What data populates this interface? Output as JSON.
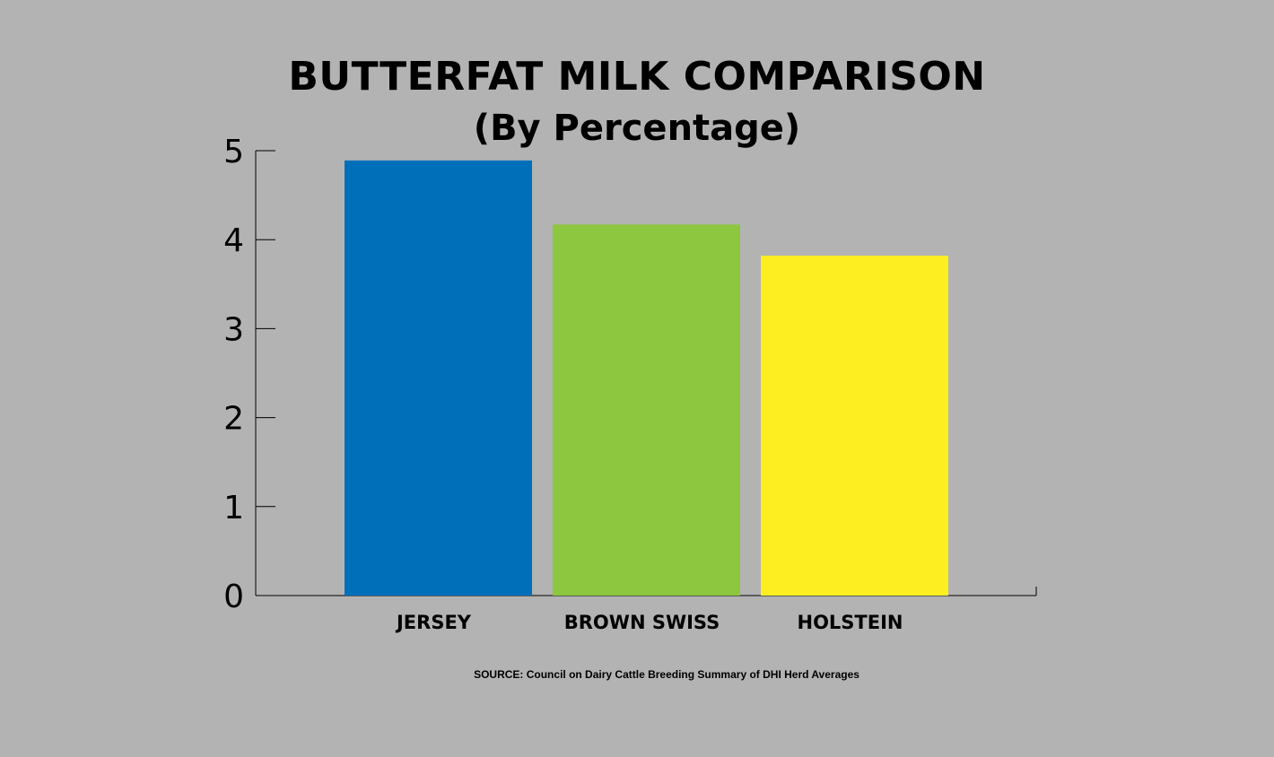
{
  "chart_data": {
    "type": "bar",
    "title": "BUTTERFAT MILK COMPARISON",
    "subtitle": "(By Percentage)",
    "categories": [
      "JERSEY",
      "BROWN SWISS",
      "HOLSTEIN"
    ],
    "values": [
      4.89,
      4.17,
      3.82
    ],
    "colors": [
      "#006fba",
      "#8dc63f",
      "#fcee21"
    ],
    "ylim": [
      0,
      5
    ],
    "yticks": [
      0,
      1,
      2,
      3,
      4,
      5
    ],
    "xlabel": "",
    "ylabel": "",
    "grid": false,
    "source": "SOURCE: Council on Dairy Cattle Breeding Summary of DHI Herd Averages"
  }
}
